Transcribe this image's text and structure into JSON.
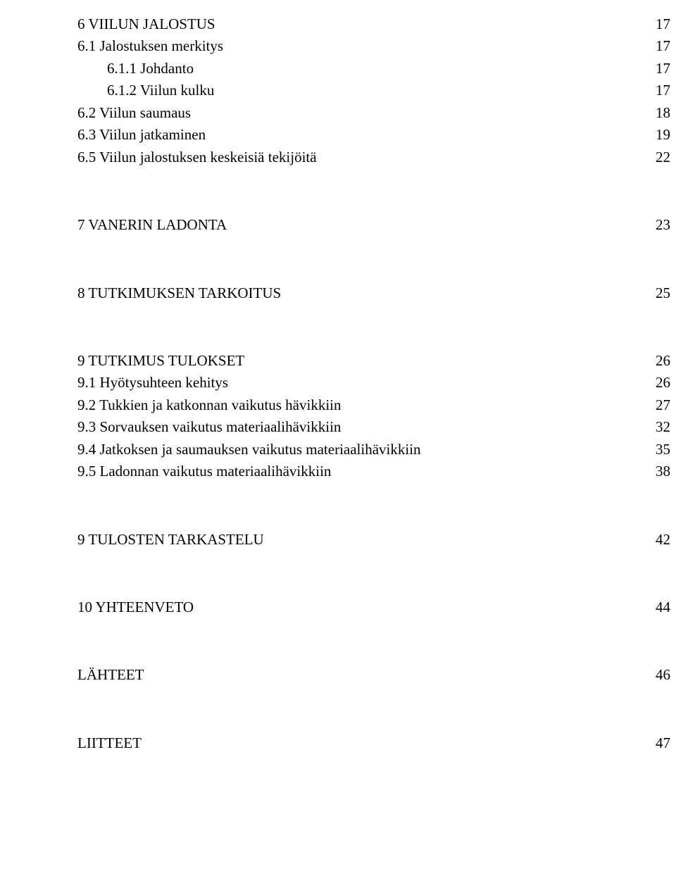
{
  "font": {
    "family": "Times New Roman",
    "size_pt": 16,
    "color": "#000000"
  },
  "background_color": "#ffffff",
  "toc": [
    {
      "label": "6 VIILUN JALOSTUS",
      "page": "17",
      "level": 0,
      "gap_after": 0
    },
    {
      "label": "6.1 Jalostuksen merkitys",
      "page": "17",
      "level": 0,
      "gap_after": 0
    },
    {
      "label": "6.1.1 Johdanto",
      "page": "17",
      "level": 1,
      "gap_after": 0
    },
    {
      "label": "6.1.2 Viilun kulku",
      "page": "17",
      "level": 1,
      "gap_after": 0
    },
    {
      "label": "6.2 Viilun saumaus",
      "page": "18",
      "level": 0,
      "gap_after": 0
    },
    {
      "label": "6.3 Viilun jatkaminen",
      "page": "19",
      "level": 0,
      "gap_after": 0
    },
    {
      "label": "6.5 Viilun jalostuksen keskeisiä tekijöitä",
      "page": "22",
      "level": 0,
      "gap_after": 2
    },
    {
      "label": "7 VANERIN LADONTA",
      "page": "23",
      "level": 0,
      "gap_after": 2
    },
    {
      "label": "8 TUTKIMUKSEN TARKOITUS",
      "page": "25",
      "level": 0,
      "gap_after": 2
    },
    {
      "label": "9 TUTKIMUS TULOKSET",
      "page": "26",
      "level": 0,
      "gap_after": 0
    },
    {
      "label": "9.1 Hyötysuhteen kehitys",
      "page": "26",
      "level": 0,
      "gap_after": 0
    },
    {
      "label": "9.2 Tukkien ja katkonnan vaikutus hävikkiin",
      "page": "27",
      "level": 0,
      "gap_after": 0
    },
    {
      "label": "9.3 Sorvauksen vaikutus materiaalihävikkiin",
      "page": "32",
      "level": 0,
      "gap_after": 0
    },
    {
      "label": "9.4 Jatkoksen ja saumauksen vaikutus materiaalihävikkiin",
      "page": "35",
      "level": 0,
      "gap_after": 0
    },
    {
      "label": "9.5 Ladonnan vaikutus materiaalihävikkiin",
      "page": "38",
      "level": 0,
      "gap_after": 2
    },
    {
      "label": "9 TULOSTEN TARKASTELU",
      "page": "42",
      "level": 0,
      "gap_after": 2
    },
    {
      "label": "10 YHTEENVETO",
      "page": "44",
      "level": 0,
      "gap_after": 2
    },
    {
      "label": "LÄHTEET",
      "page": "46",
      "level": 0,
      "gap_after": 2
    },
    {
      "label": "LIITTEET",
      "page": "47",
      "level": 0,
      "gap_after": 0
    }
  ]
}
